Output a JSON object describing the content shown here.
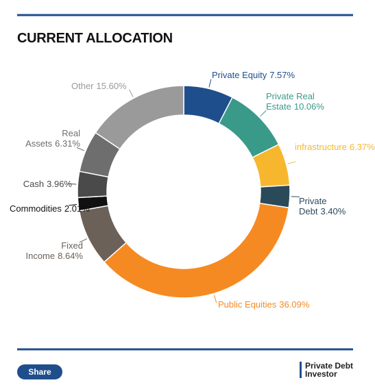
{
  "chart_data": {
    "type": "donut",
    "title": "CURRENT ALLOCATION",
    "categories": [
      "Private Equity",
      "Private Real Estate",
      "infrastructure",
      "Private Debt",
      "Public Equities",
      "Fixed Income",
      "Commodities",
      "Cash",
      "Real Assets",
      "Other"
    ],
    "values": [
      7.57,
      10.06,
      6.37,
      3.4,
      36.09,
      8.64,
      2.01,
      3.96,
      6.31,
      15.6
    ],
    "value_labels": [
      "7.57%",
      "10.06%",
      "6.37%",
      "3.40%",
      "36.09%",
      "8.64%",
      "2.01%",
      "3.96%",
      "6.31%",
      "15.60%"
    ],
    "colors": [
      "#1f4e8c",
      "#3a9a8a",
      "#f6b72f",
      "#2a4a5a",
      "#f58a22",
      "#6b6159",
      "#111111",
      "#4a4a4a",
      "#6e6e6e",
      "#9a9a9a"
    ],
    "label_colors": [
      "#1f4e8c",
      "#3a9a8a",
      "#f6b72f",
      "#2a4a5a",
      "#f58a22",
      "#6b6159",
      "#111111",
      "#4a4a4a",
      "#6e6e6e",
      "#9a9a9a"
    ]
  },
  "footer": {
    "share": "Share",
    "brand": [
      "Private Debt",
      "Investor"
    ]
  }
}
